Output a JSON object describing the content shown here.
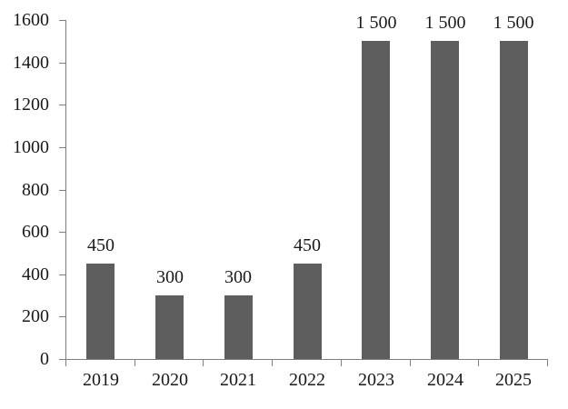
{
  "chart_data": {
    "type": "bar",
    "title": "",
    "categories": [
      "2019",
      "2020",
      "2021",
      "2022",
      "2023",
      "2024",
      "2025"
    ],
    "values": [
      450,
      300,
      300,
      450,
      1500,
      1500,
      1500
    ],
    "bar_value_labels": [
      "450",
      "300",
      "300",
      "450",
      "1 500",
      "1 500",
      "1 500"
    ],
    "xlabel": "",
    "ylabel": "",
    "ylim": [
      0,
      1600
    ],
    "ytick_step": 200,
    "yticks": [
      0,
      200,
      400,
      600,
      800,
      1000,
      1200,
      1400,
      1600
    ],
    "ytick_labels": [
      "0",
      "200",
      "400",
      "600",
      "800",
      "1000",
      "1200",
      "1400",
      "1600"
    ],
    "grid": false,
    "legend_position": "none",
    "bar_color": "#5E5E5E",
    "axis_color": "#7F7F7F",
    "text_color": "#1A1A1A",
    "background_color": "#FFFFFF"
  }
}
